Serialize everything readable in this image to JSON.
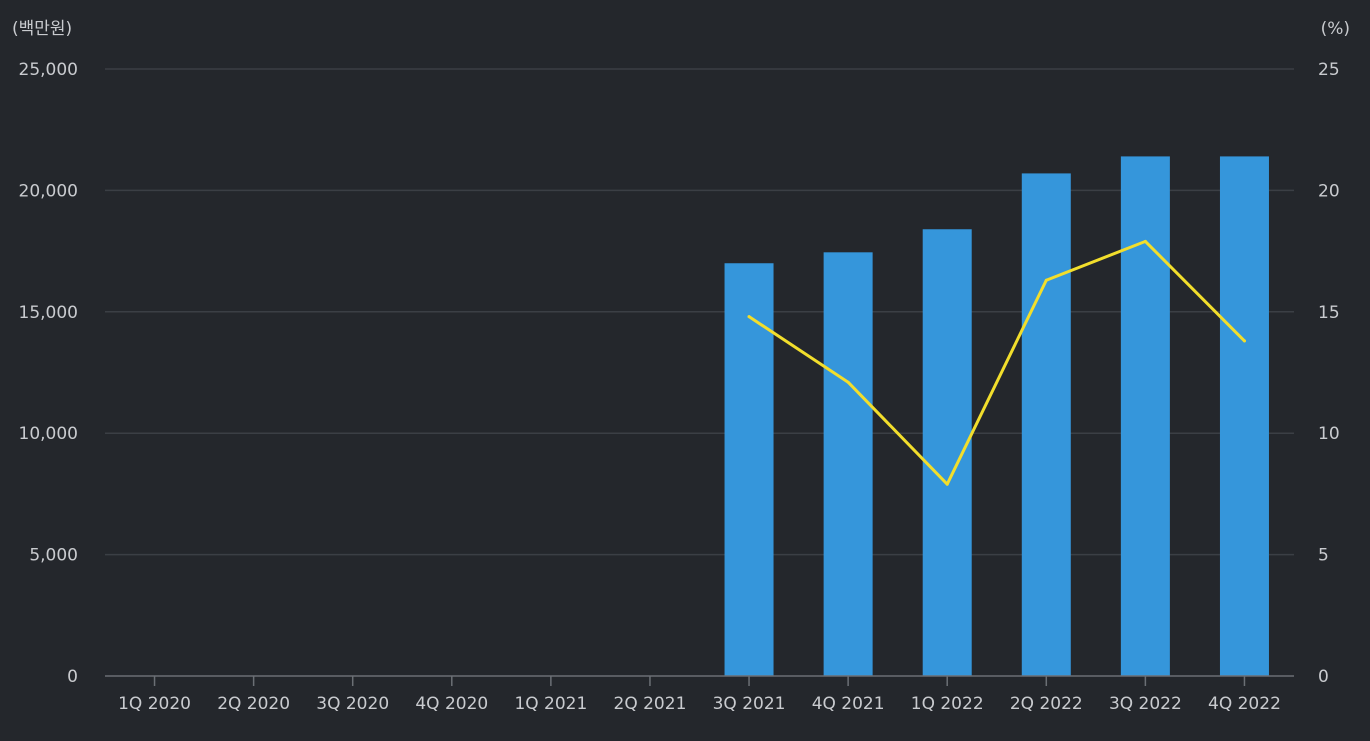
{
  "chart_data": {
    "type": "bar",
    "categories": [
      "1Q 2020",
      "2Q 2020",
      "3Q 2020",
      "4Q 2020",
      "1Q 2021",
      "2Q 2021",
      "3Q 2021",
      "4Q 2021",
      "1Q 2022",
      "2Q 2022",
      "3Q 2022",
      "4Q 2022"
    ],
    "series": [
      {
        "type": "bar",
        "axis": "left",
        "color": "#3596db",
        "values": [
          null,
          null,
          null,
          null,
          null,
          null,
          17000,
          17450,
          18400,
          20700,
          21400,
          21400
        ]
      },
      {
        "type": "line",
        "axis": "right",
        "color": "#f2de2c",
        "values": [
          null,
          null,
          null,
          null,
          null,
          null,
          14.8,
          12.1,
          7.9,
          16.3,
          17.9,
          13.8
        ]
      }
    ],
    "y_left": {
      "unit_label": "(백만원)",
      "ylim": [
        0,
        25000
      ],
      "ticks": [
        0,
        5000,
        10000,
        15000,
        20000,
        25000
      ],
      "tick_labels": [
        "0",
        "5,000",
        "10,000",
        "15,000",
        "20,000",
        "25,000"
      ]
    },
    "y_right": {
      "unit_label": "(%)",
      "ylim": [
        0,
        25
      ],
      "ticks": [
        0,
        5,
        10,
        15,
        20,
        25
      ],
      "tick_labels": [
        "0",
        "5",
        "10",
        "15",
        "20",
        "25"
      ]
    },
    "grid": true,
    "colors": {
      "background": "#24272c",
      "grid": "#3b3f45",
      "text": "#c9cbcf",
      "axis": "#6b6f75"
    }
  }
}
